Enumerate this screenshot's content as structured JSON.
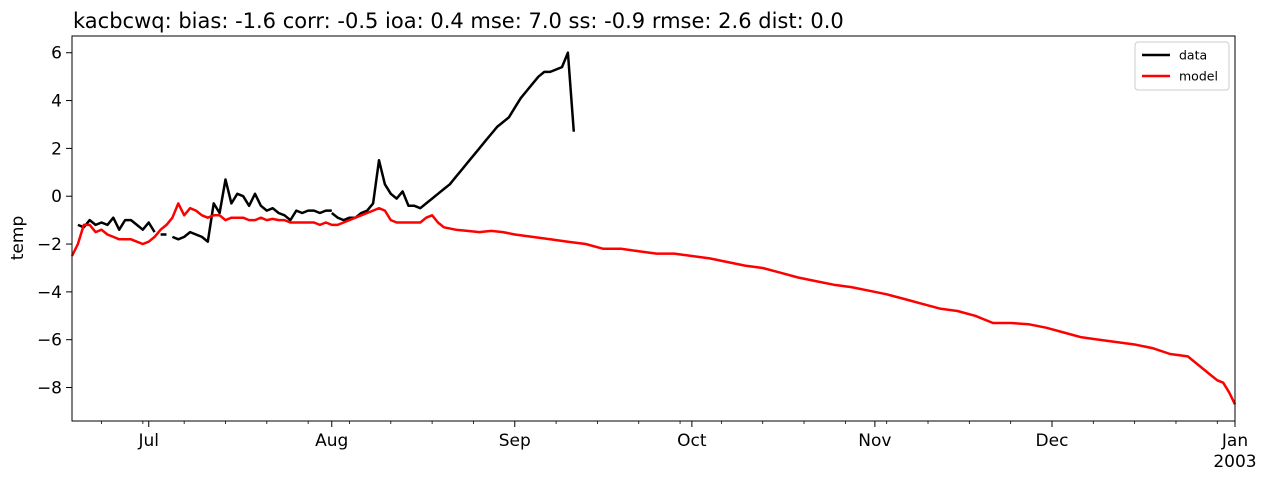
{
  "chart_data": {
    "type": "line",
    "title": "kacbcwq: bias: -1.6  corr: -0.5  ioa: 0.4  mse: 7.0  ss: -0.9  rmse: 2.6  dist: 0.0",
    "xlabel": "",
    "ylabel": "temp",
    "xlim": [
      "2002-06-18",
      "2003-01-01"
    ],
    "ylim": [
      -9.4,
      6.7
    ],
    "yticks": [
      6,
      4,
      2,
      0,
      -2,
      -4,
      -6,
      -8
    ],
    "ytick_labels": [
      "6",
      "4",
      "2",
      "0",
      "−2",
      "−4",
      "−6",
      "−8"
    ],
    "xticks": [
      {
        "date": "2002-07-01",
        "label": "Jul"
      },
      {
        "date": "2002-08-01",
        "label": "Aug"
      },
      {
        "date": "2002-09-01",
        "label": "Sep"
      },
      {
        "date": "2002-10-01",
        "label": "Oct"
      },
      {
        "date": "2002-11-01",
        "label": "Nov"
      },
      {
        "date": "2002-12-01",
        "label": "Dec"
      },
      {
        "date": "2003-01-01",
        "label": "Jan",
        "sublabel": "2003"
      }
    ],
    "grid": false,
    "legend_position": "top-right",
    "series": [
      {
        "name": "data",
        "color": "#000000",
        "segments": [
          [
            [
              "2002-06-19",
              -1.2
            ],
            [
              "2002-06-20",
              -1.3
            ],
            [
              "2002-06-21",
              -1.0
            ],
            [
              "2002-06-22",
              -1.2
            ],
            [
              "2002-06-23",
              -1.1
            ],
            [
              "2002-06-24",
              -1.2
            ],
            [
              "2002-06-25",
              -0.9
            ],
            [
              "2002-06-26",
              -1.4
            ],
            [
              "2002-06-27",
              -1.0
            ],
            [
              "2002-06-28",
              -1.0
            ],
            [
              "2002-06-29",
              -1.2
            ],
            [
              "2002-06-30",
              -1.4
            ],
            [
              "2002-07-01",
              -1.1
            ],
            [
              "2002-07-02",
              -1.5
            ]
          ],
          [
            [
              "2002-07-03",
              -1.6
            ],
            [
              "2002-07-04",
              -1.6
            ]
          ],
          [
            [
              "2002-07-05",
              -1.7
            ],
            [
              "2002-07-06",
              -1.8
            ],
            [
              "2002-07-07",
              -1.7
            ],
            [
              "2002-07-08",
              -1.5
            ],
            [
              "2002-07-09",
              -1.6
            ],
            [
              "2002-07-10",
              -1.7
            ],
            [
              "2002-07-11",
              -1.9
            ],
            [
              "2002-07-12",
              -0.3
            ],
            [
              "2002-07-13",
              -0.7
            ],
            [
              "2002-07-14",
              0.7
            ],
            [
              "2002-07-15",
              -0.3
            ],
            [
              "2002-07-16",
              0.1
            ],
            [
              "2002-07-17",
              0.0
            ],
            [
              "2002-07-18",
              -0.4
            ],
            [
              "2002-07-19",
              0.1
            ],
            [
              "2002-07-20",
              -0.4
            ],
            [
              "2002-07-21",
              -0.6
            ],
            [
              "2002-07-22",
              -0.5
            ],
            [
              "2002-07-23",
              -0.7
            ],
            [
              "2002-07-24",
              -0.8
            ],
            [
              "2002-07-25",
              -1.0
            ],
            [
              "2002-07-26",
              -0.6
            ],
            [
              "2002-07-27",
              -0.7
            ],
            [
              "2002-07-28",
              -0.6
            ],
            [
              "2002-07-29",
              -0.6
            ],
            [
              "2002-07-30",
              -0.7
            ],
            [
              "2002-07-31",
              -0.6
            ],
            [
              "2002-08-01",
              -0.6
            ]
          ],
          [
            [
              "2002-08-01",
              -0.7
            ],
            [
              "2002-08-02",
              -0.9
            ],
            [
              "2002-08-03",
              -1.0
            ],
            [
              "2002-08-04",
              -0.9
            ],
            [
              "2002-08-05",
              -0.9
            ],
            [
              "2002-08-06",
              -0.7
            ],
            [
              "2002-08-07",
              -0.6
            ],
            [
              "2002-08-08",
              -0.3
            ],
            [
              "2002-08-09",
              1.5
            ],
            [
              "2002-08-10",
              0.5
            ],
            [
              "2002-08-11",
              0.1
            ],
            [
              "2002-08-12",
              -0.1
            ],
            [
              "2002-08-13",
              0.2
            ],
            [
              "2002-08-14",
              -0.4
            ],
            [
              "2002-08-15",
              -0.4
            ],
            [
              "2002-08-16",
              -0.5
            ],
            [
              "2002-08-17",
              -0.3
            ],
            [
              "2002-08-18",
              -0.1
            ],
            [
              "2002-08-19",
              0.1
            ],
            [
              "2002-08-20",
              0.3
            ],
            [
              "2002-08-21",
              0.5
            ],
            [
              "2002-08-22",
              0.8
            ],
            [
              "2002-08-23",
              1.1
            ],
            [
              "2002-08-24",
              1.4
            ],
            [
              "2002-08-25",
              1.7
            ],
            [
              "2002-08-26",
              2.0
            ],
            [
              "2002-08-27",
              2.3
            ],
            [
              "2002-08-28",
              2.6
            ],
            [
              "2002-08-29",
              2.9
            ],
            [
              "2002-08-30",
              3.1
            ],
            [
              "2002-08-31",
              3.3
            ],
            [
              "2002-09-01",
              3.7
            ],
            [
              "2002-09-02",
              4.1
            ],
            [
              "2002-09-03",
              4.4
            ],
            [
              "2002-09-04",
              4.7
            ],
            [
              "2002-09-05",
              5.0
            ],
            [
              "2002-09-06",
              5.2
            ],
            [
              "2002-09-07",
              5.2
            ],
            [
              "2002-09-08",
              5.3
            ],
            [
              "2002-09-09",
              5.4
            ],
            [
              "2002-09-10",
              6.0
            ],
            [
              "2002-09-11",
              2.7
            ]
          ]
        ]
      },
      {
        "name": "model",
        "color": "#ff0000",
        "points": [
          [
            "2002-06-18",
            -2.5
          ],
          [
            "2002-06-19",
            -2.0
          ],
          [
            "2002-06-20",
            -1.2
          ],
          [
            "2002-06-21",
            -1.2
          ],
          [
            "2002-06-22",
            -1.5
          ],
          [
            "2002-06-23",
            -1.4
          ],
          [
            "2002-06-24",
            -1.6
          ],
          [
            "2002-06-25",
            -1.7
          ],
          [
            "2002-06-26",
            -1.8
          ],
          [
            "2002-06-27",
            -1.8
          ],
          [
            "2002-06-28",
            -1.8
          ],
          [
            "2002-06-29",
            -1.9
          ],
          [
            "2002-06-30",
            -2.0
          ],
          [
            "2002-07-01",
            -1.9
          ],
          [
            "2002-07-02",
            -1.7
          ],
          [
            "2002-07-03",
            -1.4
          ],
          [
            "2002-07-04",
            -1.2
          ],
          [
            "2002-07-05",
            -0.9
          ],
          [
            "2002-07-06",
            -0.3
          ],
          [
            "2002-07-07",
            -0.8
          ],
          [
            "2002-07-08",
            -0.5
          ],
          [
            "2002-07-09",
            -0.6
          ],
          [
            "2002-07-10",
            -0.8
          ],
          [
            "2002-07-11",
            -0.9
          ],
          [
            "2002-07-12",
            -0.8
          ],
          [
            "2002-07-13",
            -0.8
          ],
          [
            "2002-07-14",
            -1.0
          ],
          [
            "2002-07-15",
            -0.9
          ],
          [
            "2002-07-16",
            -0.9
          ],
          [
            "2002-07-17",
            -0.9
          ],
          [
            "2002-07-18",
            -1.0
          ],
          [
            "2002-07-19",
            -1.0
          ],
          [
            "2002-07-20",
            -0.9
          ],
          [
            "2002-07-21",
            -1.0
          ],
          [
            "2002-07-22",
            -0.95
          ],
          [
            "2002-07-23",
            -1.0
          ],
          [
            "2002-07-24",
            -1.0
          ],
          [
            "2002-07-25",
            -1.1
          ],
          [
            "2002-07-26",
            -1.1
          ],
          [
            "2002-07-27",
            -1.1
          ],
          [
            "2002-07-28",
            -1.1
          ],
          [
            "2002-07-29",
            -1.1
          ],
          [
            "2002-07-30",
            -1.2
          ],
          [
            "2002-07-31",
            -1.1
          ],
          [
            "2002-08-01",
            -1.2
          ],
          [
            "2002-08-02",
            -1.2
          ],
          [
            "2002-08-03",
            -1.1
          ],
          [
            "2002-08-04",
            -1.0
          ],
          [
            "2002-08-05",
            -0.9
          ],
          [
            "2002-08-06",
            -0.8
          ],
          [
            "2002-08-07",
            -0.7
          ],
          [
            "2002-08-08",
            -0.6
          ],
          [
            "2002-08-09",
            -0.5
          ],
          [
            "2002-08-10",
            -0.6
          ],
          [
            "2002-08-11",
            -1.0
          ],
          [
            "2002-08-12",
            -1.1
          ],
          [
            "2002-08-13",
            -1.1
          ],
          [
            "2002-08-14",
            -1.1
          ],
          [
            "2002-08-15",
            -1.1
          ],
          [
            "2002-08-16",
            -1.1
          ],
          [
            "2002-08-17",
            -0.9
          ],
          [
            "2002-08-18",
            -0.8
          ],
          [
            "2002-08-19",
            -1.1
          ],
          [
            "2002-08-20",
            -1.3
          ],
          [
            "2002-08-22",
            -1.4
          ],
          [
            "2002-08-24",
            -1.45
          ],
          [
            "2002-08-26",
            -1.5
          ],
          [
            "2002-08-28",
            -1.45
          ],
          [
            "2002-08-30",
            -1.5
          ],
          [
            "2002-09-01",
            -1.6
          ],
          [
            "2002-09-04",
            -1.7
          ],
          [
            "2002-09-07",
            -1.8
          ],
          [
            "2002-09-10",
            -1.9
          ],
          [
            "2002-09-13",
            -2.0
          ],
          [
            "2002-09-16",
            -2.2
          ],
          [
            "2002-09-19",
            -2.2
          ],
          [
            "2002-09-22",
            -2.3
          ],
          [
            "2002-09-25",
            -2.4
          ],
          [
            "2002-09-28",
            -2.4
          ],
          [
            "2002-10-01",
            -2.5
          ],
          [
            "2002-10-04",
            -2.6
          ],
          [
            "2002-10-07",
            -2.75
          ],
          [
            "2002-10-10",
            -2.9
          ],
          [
            "2002-10-13",
            -3.0
          ],
          [
            "2002-10-16",
            -3.2
          ],
          [
            "2002-10-19",
            -3.4
          ],
          [
            "2002-10-22",
            -3.55
          ],
          [
            "2002-10-25",
            -3.7
          ],
          [
            "2002-10-28",
            -3.8
          ],
          [
            "2002-10-31",
            -3.95
          ],
          [
            "2002-11-03",
            -4.1
          ],
          [
            "2002-11-06",
            -4.3
          ],
          [
            "2002-11-09",
            -4.5
          ],
          [
            "2002-11-12",
            -4.7
          ],
          [
            "2002-11-15",
            -4.8
          ],
          [
            "2002-11-18",
            -5.0
          ],
          [
            "2002-11-21",
            -5.3
          ],
          [
            "2002-11-24",
            -5.3
          ],
          [
            "2002-11-27",
            -5.35
          ],
          [
            "2002-11-30",
            -5.5
          ],
          [
            "2002-12-03",
            -5.7
          ],
          [
            "2002-12-06",
            -5.9
          ],
          [
            "2002-12-09",
            -6.0
          ],
          [
            "2002-12-12",
            -6.1
          ],
          [
            "2002-12-15",
            -6.2
          ],
          [
            "2002-12-18",
            -6.35
          ],
          [
            "2002-12-21",
            -6.6
          ],
          [
            "2002-12-24",
            -6.7
          ],
          [
            "2002-12-26",
            -7.1
          ],
          [
            "2002-12-28",
            -7.5
          ],
          [
            "2002-12-29",
            -7.7
          ],
          [
            "2002-12-30",
            -7.8
          ],
          [
            "2002-12-31",
            -8.2
          ],
          [
            "2003-01-01",
            -8.7
          ]
        ]
      }
    ]
  }
}
